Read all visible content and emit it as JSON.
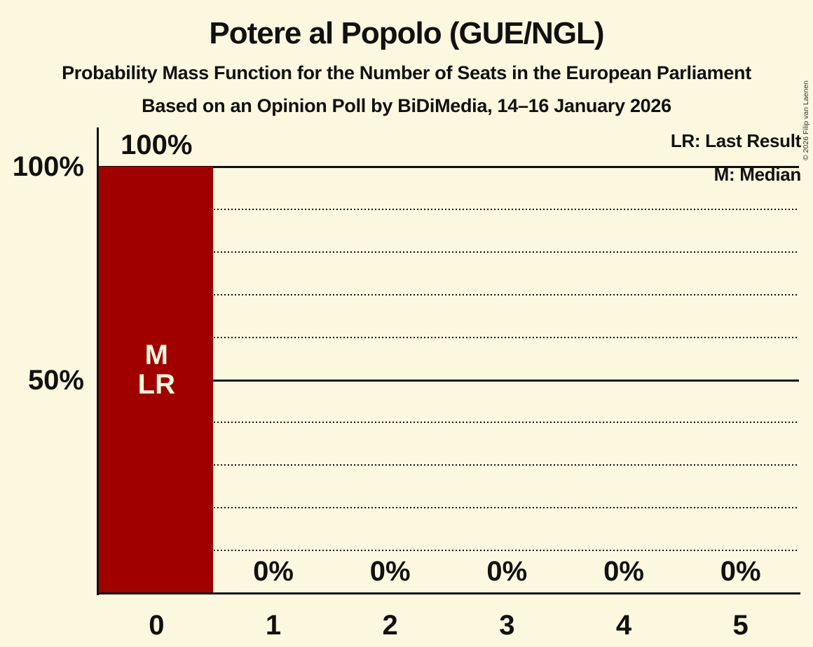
{
  "header": {
    "title": "Potere al Popolo (GUE/NGL)",
    "subtitle": "Probability Mass Function for the Number of Seats in the European Parliament",
    "source_line": "Based on an Opinion Poll by BiDiMedia, 14–16 January 2026"
  },
  "legend": {
    "last_result": "LR: Last Result",
    "median": "M: Median"
  },
  "copyright": "© 2026 Filip van Laenen",
  "colors": {
    "background": "#FCF7DF",
    "bar": "#A00000",
    "bar_label": "#FCF7DF",
    "text": "#111111"
  },
  "chart_data": {
    "type": "bar",
    "title": "Potere al Popolo (GUE/NGL)",
    "categories": [
      "0",
      "1",
      "2",
      "3",
      "4",
      "5"
    ],
    "values": [
      100,
      0,
      0,
      0,
      0,
      0
    ],
    "value_labels": [
      "100%",
      "0%",
      "0%",
      "0%",
      "0%",
      "0%"
    ],
    "bar_annotations": [
      {
        "category_index": 0,
        "lines": [
          "M",
          "LR"
        ]
      }
    ],
    "yticks": [
      {
        "label": "100%",
        "value": 100
      },
      {
        "label": "50%",
        "value": 50
      }
    ],
    "ylim": [
      0,
      100
    ],
    "gridlines": {
      "solid": [
        100,
        50
      ],
      "dotted": [
        90,
        80,
        70,
        60,
        40,
        30,
        20,
        10
      ]
    },
    "legend_position": "top-right",
    "grid": true
  }
}
